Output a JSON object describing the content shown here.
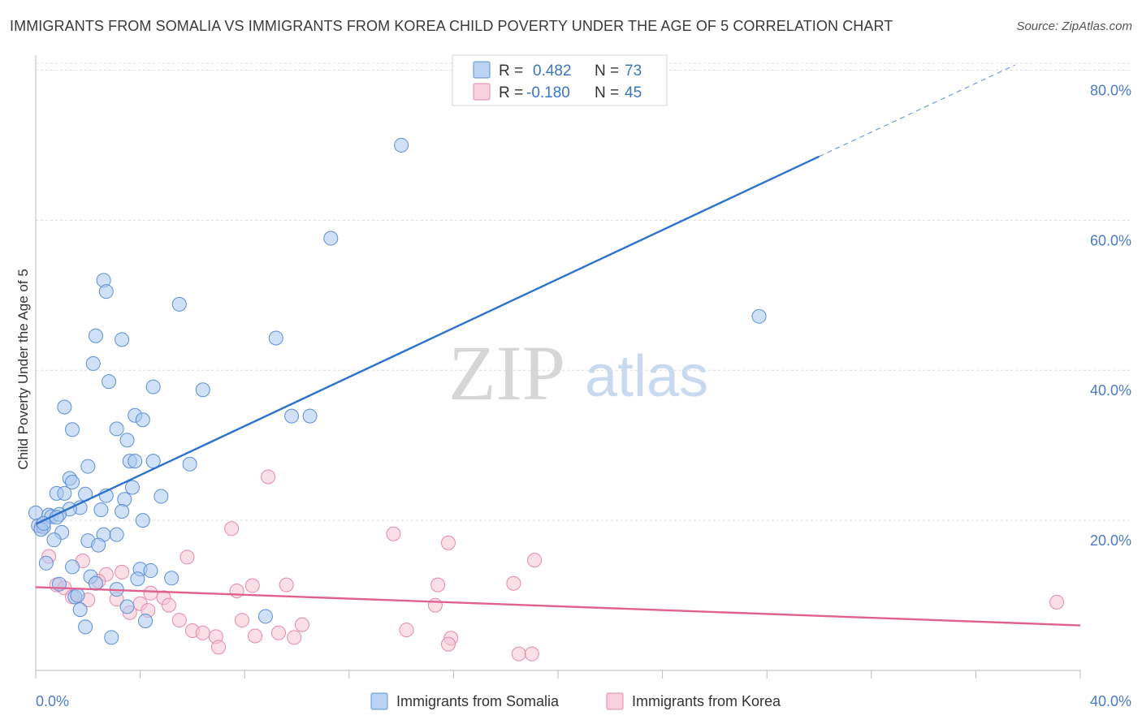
{
  "chart_data": {
    "type": "scatter",
    "title": "IMMIGRANTS FROM SOMALIA VS IMMIGRANTS FROM KOREA CHILD POVERTY UNDER THE AGE OF 5 CORRELATION CHART",
    "source": "Source: ZipAtlas.com",
    "xlabel": "",
    "ylabel": "Child Poverty Under the Age of 5",
    "xlim": [
      0,
      40
    ],
    "ylim": [
      0,
      82
    ],
    "x_tick_labels": [
      "0.0%",
      "40.0%"
    ],
    "y_ticks": [
      20,
      40,
      60,
      80
    ],
    "y_tick_labels": [
      "20.0%",
      "40.0%",
      "60.0%",
      "80.0%"
    ],
    "watermark": {
      "zip": "ZIP",
      "atlas": "atlas"
    },
    "legend": {
      "r_label": "R =",
      "n_label": "N =",
      "entries": [
        {
          "r": "0.482",
          "n": "73",
          "color": "#a9c8f0",
          "edge": "#5b8fd6"
        },
        {
          "r": "-0.180",
          "n": "45",
          "color": "#f8c4d4",
          "edge": "#e58aa8"
        }
      ]
    },
    "series": [
      {
        "name": "Immigrants from Somalia",
        "color": "#a9c8f0",
        "edge": "#5b8fd6",
        "line_color": "#2d72cc",
        "trend": {
          "x0": 0,
          "y0": 19.5,
          "x1": 30,
          "y1": 68.5,
          "dash_to_x": 37.5,
          "dash_to_y": 80.7
        },
        "points": [
          [
            14.0,
            70.0
          ],
          [
            11.3,
            57.6
          ],
          [
            2.6,
            52.0
          ],
          [
            2.7,
            50.5
          ],
          [
            5.5,
            48.8
          ],
          [
            27.7,
            47.2
          ],
          [
            2.3,
            44.6
          ],
          [
            3.3,
            44.1
          ],
          [
            9.2,
            44.3
          ],
          [
            2.2,
            40.9
          ],
          [
            2.8,
            38.5
          ],
          [
            4.5,
            37.8
          ],
          [
            6.4,
            37.4
          ],
          [
            1.1,
            35.1
          ],
          [
            3.8,
            34.0
          ],
          [
            9.8,
            33.9
          ],
          [
            10.5,
            33.9
          ],
          [
            4.1,
            33.4
          ],
          [
            1.4,
            32.1
          ],
          [
            3.1,
            32.2
          ],
          [
            3.5,
            30.7
          ],
          [
            3.6,
            27.9
          ],
          [
            4.5,
            27.9
          ],
          [
            3.8,
            27.9
          ],
          [
            2.0,
            27.2
          ],
          [
            5.9,
            27.5
          ],
          [
            1.3,
            25.6
          ],
          [
            1.4,
            25.1
          ],
          [
            0.8,
            23.6
          ],
          [
            1.9,
            23.5
          ],
          [
            1.1,
            23.6
          ],
          [
            2.7,
            23.3
          ],
          [
            3.7,
            24.4
          ],
          [
            4.8,
            23.2
          ],
          [
            3.4,
            22.8
          ],
          [
            1.7,
            21.7
          ],
          [
            1.3,
            21.5
          ],
          [
            2.5,
            21.4
          ],
          [
            3.3,
            21.2
          ],
          [
            0.0,
            21.0
          ],
          [
            0.5,
            20.7
          ],
          [
            0.6,
            20.5
          ],
          [
            0.9,
            20.8
          ],
          [
            0.1,
            19.3
          ],
          [
            0.3,
            19.1
          ],
          [
            4.1,
            20.0
          ],
          [
            0.2,
            18.8
          ],
          [
            1.0,
            18.4
          ],
          [
            2.6,
            18.1
          ],
          [
            3.1,
            18.1
          ],
          [
            0.7,
            17.4
          ],
          [
            2.0,
            17.3
          ],
          [
            2.4,
            16.7
          ],
          [
            0.4,
            14.3
          ],
          [
            1.4,
            13.8
          ],
          [
            4.0,
            13.5
          ],
          [
            4.4,
            13.3
          ],
          [
            2.1,
            12.5
          ],
          [
            3.9,
            12.2
          ],
          [
            5.2,
            12.3
          ],
          [
            2.3,
            11.6
          ],
          [
            0.9,
            11.5
          ],
          [
            3.1,
            10.8
          ],
          [
            1.5,
            9.8
          ],
          [
            1.6,
            10.0
          ],
          [
            3.5,
            8.5
          ],
          [
            1.7,
            8.1
          ],
          [
            8.8,
            7.2
          ],
          [
            4.2,
            6.6
          ],
          [
            1.9,
            5.8
          ],
          [
            2.9,
            4.4
          ],
          [
            0.3,
            19.6
          ],
          [
            0.8,
            20.4
          ]
        ]
      },
      {
        "name": "Immigrants from Korea",
        "color": "#f8c4d4",
        "edge": "#e58aa8",
        "line_color": "#e0618e",
        "trend": {
          "x0": 0,
          "y0": 11.1,
          "x1": 40,
          "y1": 6.0
        },
        "points": [
          [
            8.9,
            25.8
          ],
          [
            7.5,
            18.9
          ],
          [
            13.7,
            18.2
          ],
          [
            15.8,
            17.0
          ],
          [
            0.2,
            19.2
          ],
          [
            0.5,
            15.2
          ],
          [
            5.8,
            15.1
          ],
          [
            19.1,
            14.7
          ],
          [
            1.8,
            14.6
          ],
          [
            3.3,
            13.1
          ],
          [
            2.7,
            12.8
          ],
          [
            0.8,
            11.4
          ],
          [
            1.1,
            11.0
          ],
          [
            2.4,
            11.9
          ],
          [
            8.3,
            11.3
          ],
          [
            9.6,
            11.4
          ],
          [
            15.4,
            11.4
          ],
          [
            18.3,
            11.6
          ],
          [
            7.7,
            10.6
          ],
          [
            4.4,
            10.3
          ],
          [
            4.9,
            9.7
          ],
          [
            1.4,
            9.8
          ],
          [
            3.1,
            9.5
          ],
          [
            2.0,
            9.4
          ],
          [
            4.0,
            8.9
          ],
          [
            5.1,
            8.7
          ],
          [
            15.3,
            8.7
          ],
          [
            39.1,
            9.1
          ],
          [
            4.3,
            8.0
          ],
          [
            3.6,
            7.7
          ],
          [
            5.5,
            6.7
          ],
          [
            7.9,
            6.7
          ],
          [
            10.2,
            6.1
          ],
          [
            6.0,
            5.3
          ],
          [
            6.4,
            5.0
          ],
          [
            14.2,
            5.4
          ],
          [
            9.3,
            5.0
          ],
          [
            6.9,
            4.5
          ],
          [
            8.4,
            4.6
          ],
          [
            9.9,
            4.4
          ],
          [
            15.9,
            4.3
          ],
          [
            15.8,
            3.5
          ],
          [
            7.0,
            3.1
          ],
          [
            18.5,
            2.2
          ],
          [
            19.0,
            2.2
          ]
        ]
      }
    ]
  }
}
